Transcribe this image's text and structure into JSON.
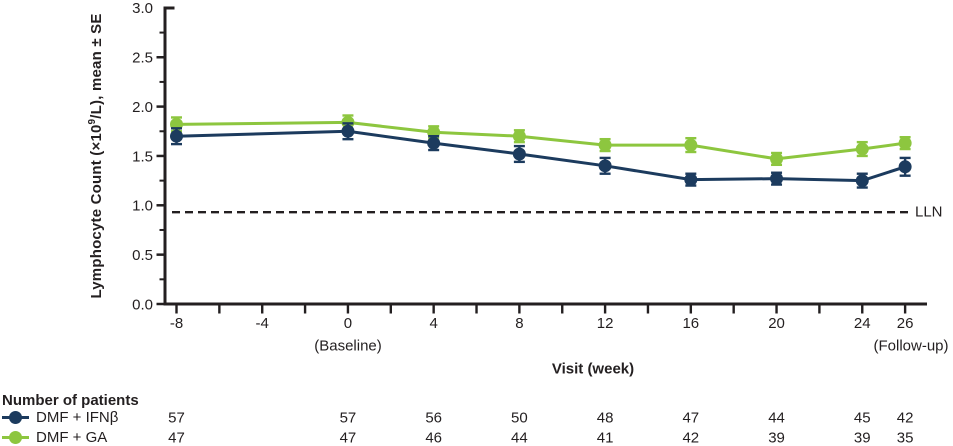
{
  "chart_data": {
    "type": "line",
    "title": "",
    "xlabel": "Visit (week)",
    "ylabel": "Lymphocyte Count (×10⁹/L), mean ± SE",
    "ylabel_parts": {
      "prefix": "Lymphocyte Count (×10",
      "superscript": "9",
      "suffix": "/L), mean ± SE"
    },
    "ylim": [
      0.0,
      3.0
    ],
    "y_major_ticks": [
      "0.0",
      "0.5",
      "1.0",
      "1.5",
      "2.0",
      "2.5",
      "3.0"
    ],
    "y_minor_step": 0.25,
    "x_major_ticks": [
      -8,
      -4,
      0,
      4,
      8,
      12,
      16,
      20,
      24,
      26
    ],
    "x_minor_ticks": [
      -6,
      -2,
      2,
      6,
      10,
      14,
      18,
      22
    ],
    "grid": false,
    "legend_position": "bottom-left",
    "annotations": {
      "baseline": "(Baseline)",
      "followup": "(Follow-up)",
      "lln_label": "LLN",
      "lln_value": 0.93
    },
    "patients_header": "Number of patients",
    "weeks": [
      -8,
      0,
      4,
      8,
      12,
      16,
      20,
      24,
      26
    ],
    "series": [
      {
        "name": "DMF + IFNβ",
        "color": "#1C3B5E",
        "values": [
          1.7,
          1.75,
          1.63,
          1.52,
          1.4,
          1.26,
          1.27,
          1.25,
          1.39
        ],
        "se": [
          0.08,
          0.08,
          0.07,
          0.08,
          0.08,
          0.06,
          0.06,
          0.07,
          0.09
        ],
        "patients": [
          57,
          57,
          56,
          50,
          48,
          47,
          44,
          45,
          42
        ]
      },
      {
        "name": "DMF + GA",
        "color": "#8DC63F",
        "values": [
          1.82,
          1.84,
          1.74,
          1.7,
          1.61,
          1.61,
          1.47,
          1.57,
          1.63
        ],
        "se": [
          0.07,
          0.07,
          0.06,
          0.06,
          0.06,
          0.07,
          0.06,
          0.07,
          0.06
        ],
        "patients": [
          47,
          47,
          46,
          44,
          41,
          42,
          39,
          39,
          35
        ]
      }
    ],
    "ink_color": "#231F20"
  }
}
